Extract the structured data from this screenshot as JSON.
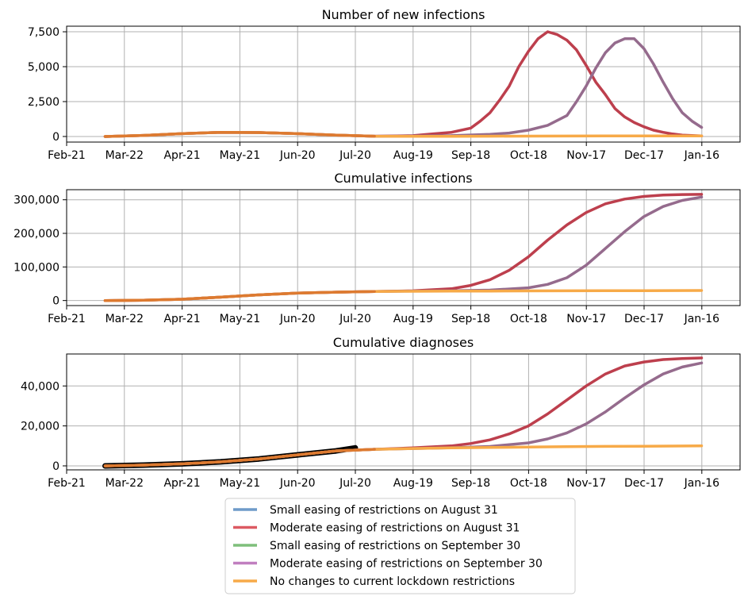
{
  "legend": [
    {
      "label": "Small easing of restrictions on August 31",
      "color": "#6f9bc9"
    },
    {
      "label": "Moderate easing of restrictions on August 31",
      "color": "#dc5a62"
    },
    {
      "label": "Small easing of restrictions on September 30",
      "color": "#7fbf7b"
    },
    {
      "label": "Moderate easing of restrictions on September 30",
      "color": "#c07fbf"
    },
    {
      "label": "No changes to current lockdown restrictions",
      "color": "#f7aa48"
    }
  ],
  "chart_data": [
    {
      "type": "line",
      "title": "Number of new infections",
      "x_ticks": [
        "Feb-21",
        "Mar-22",
        "Apr-21",
        "May-21",
        "Jun-20",
        "Jul-20",
        "Aug-19",
        "Sep-18",
        "Oct-18",
        "Nov-17",
        "Dec-17",
        "Jan-16"
      ],
      "y_ticks": [
        0,
        2500,
        5000,
        7500
      ],
      "y_tick_labels": [
        "0",
        "2,500",
        "5,000",
        "7,500"
      ],
      "ylim": [
        -400,
        7900
      ],
      "grid": true,
      "series": [
        {
          "color": "#bd3f4d",
          "x": [
            20,
            40,
            60,
            80,
            100,
            120,
            140,
            160,
            180,
            190,
            200,
            210,
            215,
            220,
            225,
            230,
            235,
            240,
            245,
            250,
            255,
            260,
            265,
            270,
            275,
            280,
            285,
            290,
            295,
            300,
            305,
            310,
            315,
            320,
            330
          ],
          "y": [
            0,
            80,
            200,
            300,
            280,
            200,
            100,
            20,
            60,
            180,
            300,
            600,
            1100,
            1700,
            2600,
            3600,
            5000,
            6100,
            7000,
            7500,
            7300,
            6900,
            6200,
            5100,
            3900,
            3000,
            2000,
            1400,
            1000,
            700,
            450,
            300,
            180,
            100,
            40
          ]
        },
        {
          "color": "#956b8d",
          "x": [
            20,
            40,
            60,
            80,
            100,
            120,
            140,
            160,
            180,
            200,
            220,
            230,
            240,
            250,
            260,
            265,
            270,
            275,
            280,
            285,
            290,
            295,
            300,
            305,
            310,
            315,
            320,
            325,
            330
          ],
          "y": [
            0,
            80,
            200,
            300,
            280,
            200,
            100,
            20,
            30,
            60,
            150,
            250,
            450,
            800,
            1500,
            2500,
            3600,
            4900,
            6000,
            6700,
            7000,
            7000,
            6300,
            5200,
            3900,
            2700,
            1700,
            1100,
            650
          ]
        },
        {
          "color": "#f7aa48",
          "x": [
            20,
            40,
            60,
            80,
            100,
            120,
            140,
            160,
            180,
            200,
            220,
            240,
            260,
            280,
            300,
            330
          ],
          "y": [
            0,
            80,
            200,
            300,
            280,
            200,
            100,
            20,
            10,
            15,
            20,
            25,
            30,
            35,
            38,
            40
          ]
        },
        {
          "color": "#dd7a30",
          "x": [
            20,
            40,
            60,
            80,
            100,
            120,
            140,
            160
          ],
          "y": [
            0,
            80,
            200,
            300,
            280,
            200,
            100,
            20
          ]
        }
      ]
    },
    {
      "type": "line",
      "title": "Cumulative infections",
      "x_ticks": [
        "Feb-21",
        "Mar-22",
        "Apr-21",
        "May-21",
        "Jun-20",
        "Jul-20",
        "Aug-19",
        "Sep-18",
        "Oct-18",
        "Nov-17",
        "Dec-17",
        "Jan-16"
      ],
      "y_ticks": [
        0,
        100000,
        200000,
        300000
      ],
      "y_tick_labels": [
        "0",
        "100,000",
        "200,000",
        "300,000"
      ],
      "ylim": [
        -15000,
        330000
      ],
      "grid": true,
      "series": [
        {
          "color": "#bd3f4d",
          "x": [
            20,
            40,
            60,
            80,
            100,
            120,
            140,
            160,
            180,
            200,
            210,
            220,
            230,
            240,
            250,
            260,
            270,
            280,
            290,
            300,
            310,
            320,
            330
          ],
          "y": [
            0,
            1000,
            4000,
            10000,
            17000,
            22000,
            25000,
            27000,
            29000,
            35000,
            45000,
            62000,
            90000,
            130000,
            180000,
            225000,
            262000,
            288000,
            302000,
            310000,
            314000,
            315500,
            316000
          ]
        },
        {
          "color": "#956b8d",
          "x": [
            20,
            40,
            60,
            80,
            100,
            120,
            140,
            160,
            180,
            200,
            220,
            240,
            250,
            260,
            270,
            280,
            290,
            300,
            310,
            320,
            330
          ],
          "y": [
            0,
            1000,
            4000,
            10000,
            17000,
            22000,
            25000,
            27000,
            28000,
            29000,
            31000,
            38000,
            48000,
            68000,
            105000,
            155000,
            205000,
            250000,
            280000,
            298000,
            308000
          ]
        },
        {
          "color": "#f7aa48",
          "x": [
            20,
            40,
            60,
            80,
            100,
            120,
            140,
            160,
            180,
            200,
            220,
            240,
            260,
            280,
            300,
            330
          ],
          "y": [
            0,
            1000,
            4000,
            10000,
            17000,
            22000,
            25000,
            27000,
            27500,
            28000,
            28300,
            28600,
            28900,
            29200,
            29500,
            30000
          ]
        },
        {
          "color": "#dd7a30",
          "x": [
            20,
            40,
            60,
            80,
            100,
            120,
            140,
            160
          ],
          "y": [
            0,
            1000,
            4000,
            10000,
            17000,
            22000,
            25000,
            27000
          ]
        }
      ]
    },
    {
      "type": "line",
      "title": "Cumulative diagnoses",
      "x_ticks": [
        "Feb-21",
        "Mar-22",
        "Apr-21",
        "May-21",
        "Jun-20",
        "Jul-20",
        "Aug-19",
        "Sep-18",
        "Oct-18",
        "Nov-17",
        "Dec-17",
        "Jan-16"
      ],
      "y_ticks": [
        0,
        20000,
        40000
      ],
      "y_tick_labels": [
        "0",
        "20,000",
        "40,000"
      ],
      "ylim": [
        -2000,
        56000
      ],
      "grid": true,
      "series": [
        {
          "color": "#000000",
          "x": [
            20,
            40,
            60,
            80,
            100,
            120,
            140,
            150
          ],
          "y": [
            0,
            400,
            1000,
            2000,
            3500,
            5500,
            7500,
            9000
          ]
        },
        {
          "color": "#bd3f4d",
          "x": [
            20,
            40,
            60,
            80,
            100,
            120,
            140,
            160,
            180,
            200,
            210,
            220,
            230,
            240,
            250,
            260,
            270,
            280,
            290,
            300,
            310,
            320,
            330
          ],
          "y": [
            0,
            400,
            1000,
            2000,
            3500,
            5500,
            7500,
            8300,
            9000,
            10000,
            11200,
            13000,
            16000,
            20000,
            26000,
            33000,
            40000,
            46000,
            50000,
            52000,
            53200,
            53700,
            54000
          ]
        },
        {
          "color": "#956b8d",
          "x": [
            20,
            40,
            60,
            80,
            100,
            120,
            140,
            160,
            180,
            200,
            220,
            240,
            250,
            260,
            270,
            280,
            290,
            300,
            310,
            320,
            330
          ],
          "y": [
            0,
            400,
            1000,
            2000,
            3500,
            5500,
            7500,
            8300,
            8700,
            9100,
            9700,
            11500,
            13500,
            16500,
            21000,
            27000,
            34000,
            40500,
            46000,
            49500,
            51500
          ]
        },
        {
          "color": "#f7aa48",
          "x": [
            20,
            40,
            60,
            80,
            100,
            120,
            140,
            160,
            180,
            200,
            220,
            240,
            260,
            280,
            300,
            330
          ],
          "y": [
            0,
            400,
            1000,
            2000,
            3500,
            5500,
            7500,
            8300,
            8700,
            9000,
            9200,
            9400,
            9600,
            9750,
            9850,
            10000
          ]
        },
        {
          "color": "#dd7a30",
          "x": [
            20,
            40,
            60,
            80,
            100,
            120,
            140,
            160
          ],
          "y": [
            0,
            400,
            1000,
            2000,
            3500,
            5500,
            7500,
            8300
          ]
        }
      ]
    }
  ]
}
